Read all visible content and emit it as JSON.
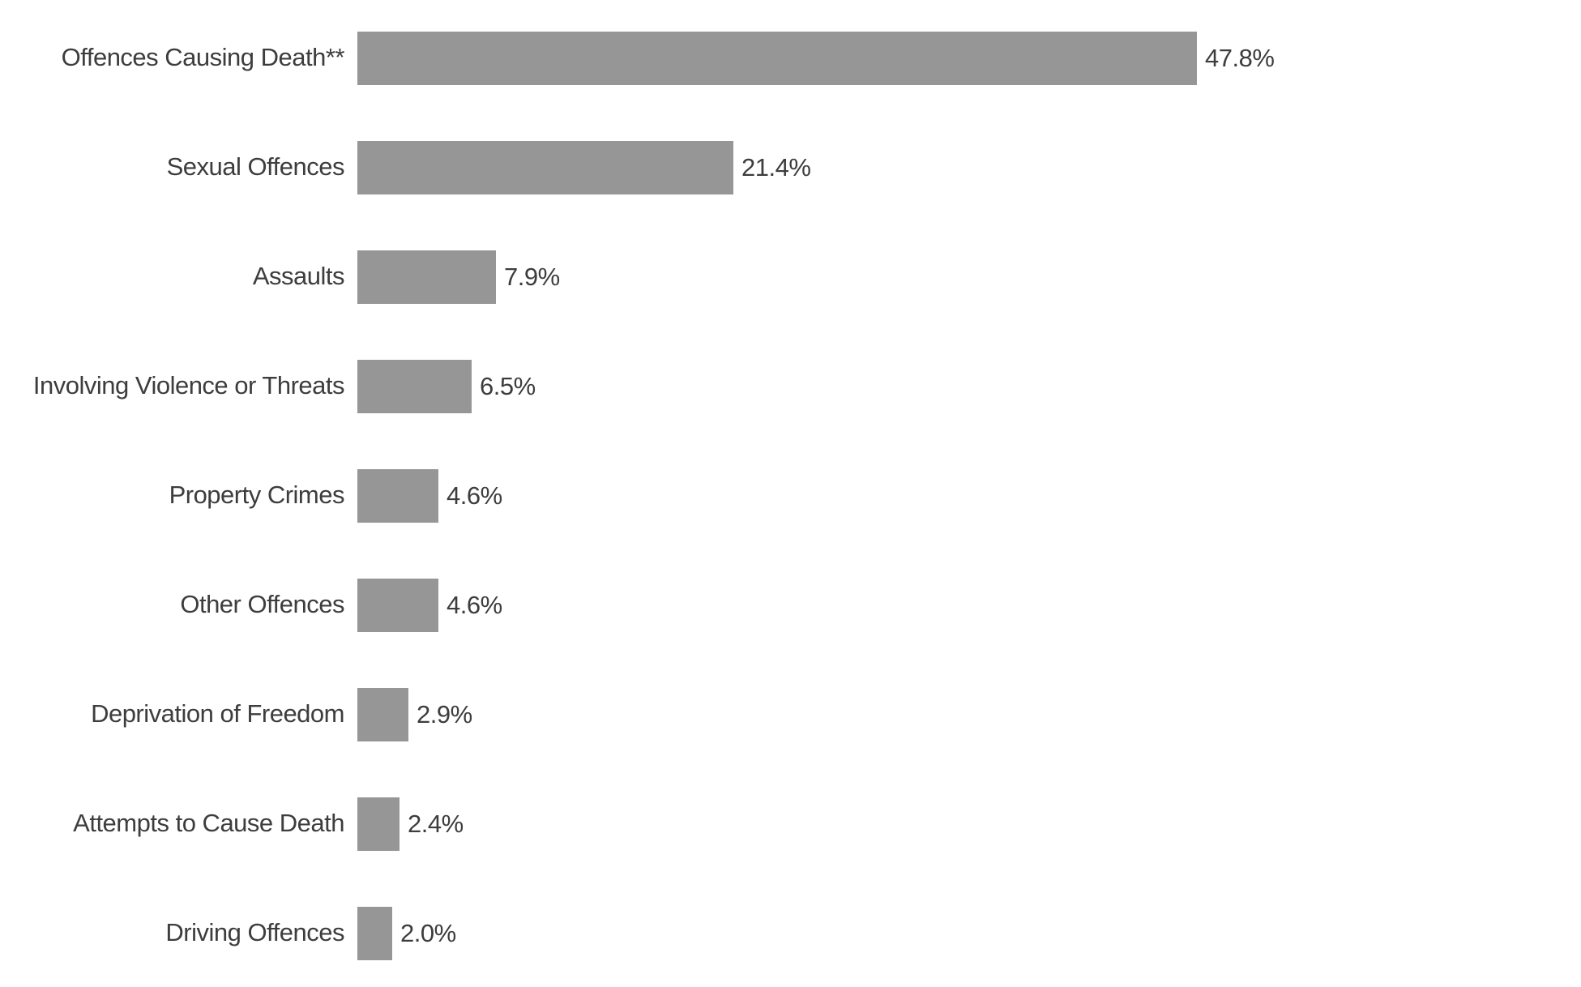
{
  "chart_data": {
    "type": "bar",
    "orientation": "horizontal",
    "title": "",
    "xlabel": "",
    "ylabel": "",
    "categories": [
      "Offences Causing Death**",
      "Sexual Offences",
      "Assaults",
      "Involving Violence or Threats",
      "Property Crimes",
      "Other Offences",
      "Deprivation of Freedom",
      "Attempts to Cause Death",
      "Driving Offences"
    ],
    "values": [
      47.8,
      21.4,
      7.9,
      6.5,
      4.6,
      4.6,
      2.9,
      2.4,
      2.0
    ],
    "value_labels": [
      "47.8%",
      "21.4%",
      "7.9%",
      "6.5%",
      "4.6%",
      "4.6%",
      "2.9%",
      "2.4%",
      "2.0%"
    ],
    "xlim": [
      0,
      50
    ],
    "grid": false,
    "legend": false,
    "bar_color": "#969696",
    "text_color": "#3d3d3d",
    "background_color": "#ffffff"
  }
}
